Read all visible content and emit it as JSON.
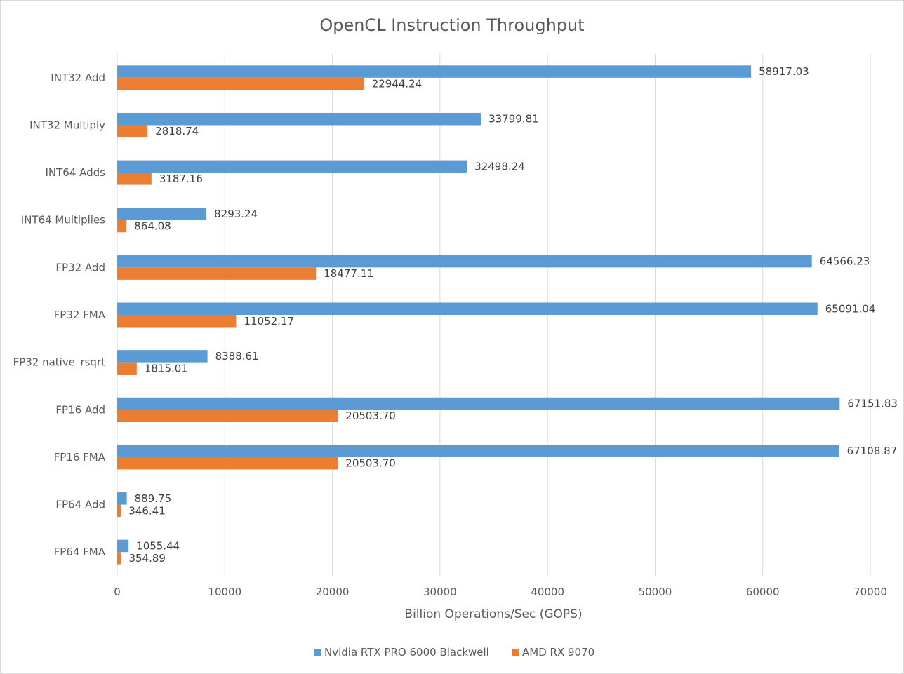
{
  "chart_data": {
    "type": "bar",
    "orientation": "horizontal",
    "title": "OpenCL Instruction Throughput",
    "xlabel": "Billion Operations/Sec (GOPS)",
    "ylabel": "",
    "xlim": [
      0,
      70000
    ],
    "xticks": [
      0,
      10000,
      20000,
      30000,
      40000,
      50000,
      60000,
      70000
    ],
    "grid": true,
    "legend_position": "bottom",
    "categories": [
      "INT32 Add",
      "INT32 Multiply",
      "INT64 Adds",
      "INT64 Multiplies",
      "FP32 Add",
      "FP32 FMA",
      "FP32 native_rsqrt",
      "FP16 Add",
      "FP16 FMA",
      "FP64 Add",
      "FP64 FMA"
    ],
    "series": [
      {
        "name": "Nvidia RTX PRO 6000 Blackwell",
        "color": "#5b9bd5",
        "values": [
          58917.03,
          33799.81,
          32498.24,
          8293.24,
          64566.23,
          65091.04,
          8388.61,
          67151.83,
          67108.87,
          889.75,
          1055.44
        ],
        "labels": [
          "58917.03",
          "33799.81",
          "32498.24",
          "8293.24",
          "64566.23",
          "65091.04",
          "8388.61",
          "67151.83",
          "67108.87",
          "889.75",
          "1055.44"
        ]
      },
      {
        "name": "AMD RX 9070",
        "color": "#ed7d31",
        "values": [
          22944.24,
          2818.74,
          3187.16,
          864.08,
          18477.11,
          11052.17,
          1815.01,
          20503.7,
          20503.7,
          346.41,
          354.89
        ],
        "labels": [
          "22944.24",
          "2818.74",
          "3187.16",
          "864.08",
          "18477.11",
          "11052.17",
          "1815.01",
          "20503.70",
          "20503.70",
          "346.41",
          "354.89"
        ]
      }
    ]
  }
}
